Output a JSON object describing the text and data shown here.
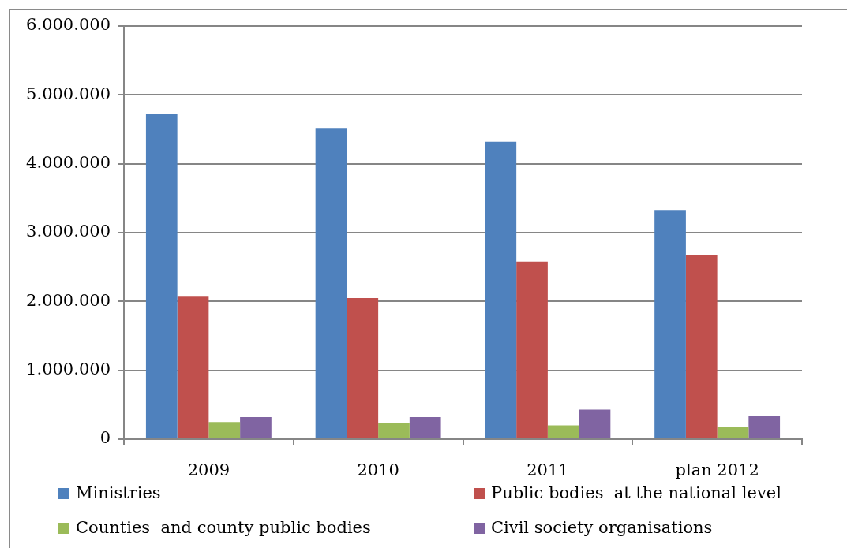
{
  "chart_data": {
    "type": "bar",
    "categories": [
      "2009",
      "2010",
      "2011",
      "plan 2012"
    ],
    "series": [
      {
        "name": "Ministries",
        "color": "#4f81bd",
        "values": [
          4730000,
          4520000,
          4320000,
          3330000
        ]
      },
      {
        "name": "Public bodies  at the national level",
        "color": "#c0504d",
        "values": [
          2070000,
          2050000,
          2580000,
          2670000
        ]
      },
      {
        "name": "Counties  and county public bodies",
        "color": "#9bbb59",
        "values": [
          250000,
          230000,
          200000,
          180000
        ]
      },
      {
        "name": "Civil society organisations",
        "color": "#8064a2",
        "values": [
          320000,
          320000,
          430000,
          340000
        ]
      }
    ],
    "ylim": [
      0,
      6000000
    ],
    "yticks": [
      0,
      {
        "value": 1000000,
        "label": "1.000.000"
      },
      {
        "value": 2000000,
        "label": "2.000.000"
      },
      {
        "value": 3000000,
        "label": "3.000.000"
      },
      {
        "value": 4000000,
        "label": "4.000.000"
      },
      {
        "value": 5000000,
        "label": "5.000.000"
      },
      {
        "value": 6000000,
        "label": "6.000.000"
      }
    ],
    "grid": "y",
    "legend": "bottom"
  }
}
